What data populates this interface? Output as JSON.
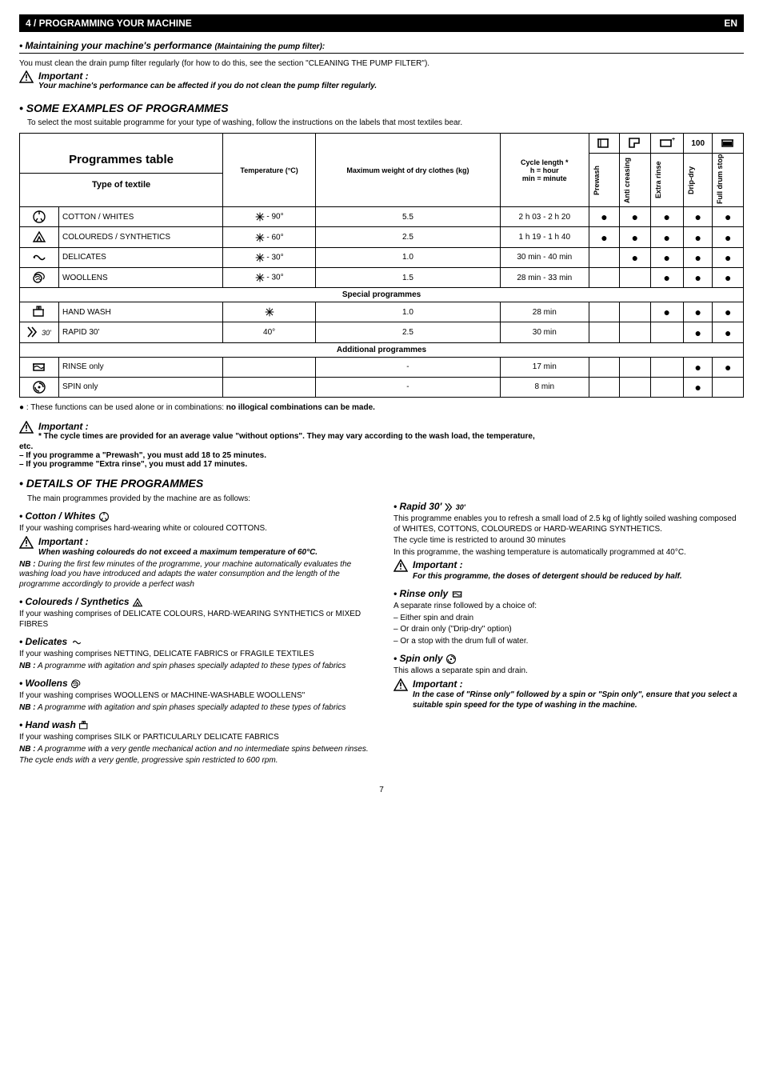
{
  "header": {
    "left": "4 / PROGRAMMING YOUR MACHINE",
    "right": "EN"
  },
  "maint_title": "• Maintaining your machine's performance",
  "maint_sub": "(Maintaining the pump filter):",
  "maint_body": "You must clean the drain pump filter regularly (for how to do this, see the section \"CLEANING THE PUMP FILTER\").",
  "maint_warn_imp": "Important :",
  "maint_warn_body": "Your machine's performance can be affected if you do not clean the pump filter regularly.",
  "examples_title": "• SOME EXAMPLES OF PROGRAMMES",
  "examples_body": "To select the most suitable programme for your type of washing, follow the instructions on the labels that most textiles bear.",
  "table": {
    "title": "Programmes table",
    "type_label": "Type of textile",
    "col_temp": "Temperature (°C)",
    "col_maxw": "Maximum weight of dry clothes (kg)",
    "col_cycle_l1": "Cycle length *",
    "col_cycle_l2": "h = hour",
    "col_cycle_l3": "min = minute",
    "vh": [
      "Prewash",
      "Anti creasing",
      "Extra rinse",
      "Drip-dry",
      "Full drum stop"
    ],
    "top_icons_num": "100",
    "rows": [
      {
        "name": "COTTON / WHITES",
        "temp": "- 90°",
        "kg": "5.5",
        "cycle": "2 h 03 - 2 h 20",
        "d": [
          1,
          1,
          1,
          1,
          1
        ],
        "icon": "cotton",
        "snow": true
      },
      {
        "name": "COLOUREDS / SYNTHETICS",
        "temp": "- 60°",
        "kg": "2.5",
        "cycle": "1 h 19 - 1 h 40",
        "d": [
          1,
          1,
          1,
          1,
          1
        ],
        "icon": "syn",
        "snow": true
      },
      {
        "name": "DELICATES",
        "temp": "- 30°",
        "kg": "1.0",
        "cycle": "30 min - 40 min",
        "d": [
          0,
          1,
          1,
          1,
          1
        ],
        "icon": "del",
        "snow": true
      },
      {
        "name": "WOOLLENS",
        "temp": "- 30°",
        "kg": "1.5",
        "cycle": "28 min - 33 min",
        "d": [
          0,
          0,
          1,
          1,
          1
        ],
        "icon": "wool",
        "snow": true
      }
    ],
    "special_label": "Special programmes",
    "special": [
      {
        "name": "HAND WASH",
        "temp": "",
        "kg": "1.0",
        "cycle": "28 min",
        "d": [
          0,
          0,
          1,
          1,
          1
        ],
        "icon": "hand",
        "snow": true
      },
      {
        "name": "RAPID 30'",
        "temp": "40°",
        "kg": "2.5",
        "cycle": "30 min",
        "d": [
          0,
          0,
          0,
          1,
          1
        ],
        "icon": "rapid",
        "snow": false
      }
    ],
    "additional_label": "Additional programmes",
    "additional": [
      {
        "name": "RINSE only",
        "temp": "",
        "kg": "-",
        "cycle": "17 min",
        "d": [
          0,
          0,
          0,
          1,
          1
        ],
        "icon": "rinse",
        "snow": false
      },
      {
        "name": "SPIN only",
        "temp": "",
        "kg": "-",
        "cycle": "8 min",
        "d": [
          0,
          0,
          0,
          1,
          0
        ],
        "icon": "spin",
        "snow": false
      }
    ]
  },
  "func_note": "● : These functions can be used alone or in combinations: ",
  "func_note_bold": "no illogical combinations can be made.",
  "imp2_title": "Important :",
  "imp2_l1": "* The cycle times are provided for an average value \"without options\". They may vary according to the wash load, the temperature,",
  "imp2_etc": "etc.",
  "imp2_l2": "– If you programme a \"Prewash\", you must add 18 to 25 minutes.",
  "imp2_l3": "– If you programme \"Extra rinse\", you must add 17 minutes.",
  "details_title": "• DETAILS OF THE PROGRAMMES",
  "details_intro": "The main programmes provided by the machine are as follows:",
  "left": {
    "cotton_t": "• Cotton / Whites",
    "cotton_b": "If your washing comprises hard-wearing white or coloured COTTONS.",
    "cotton_imp": "Important :",
    "cotton_imp_b": "When washing coloureds do not exceed a maximum temperature of 60°C.",
    "cotton_nb": "NB : During the first few minutes of the programme, your machine automatically evaluates the washing load you have introduced and adapts the water consumption and the length of the programme accordingly to provide a perfect wash",
    "col_t": "• Coloureds / Synthetics",
    "col_b": "If your washing comprises of DELICATE COLOURS, HARD-WEARING SYNTHETICS or MIXED FIBRES",
    "del_t": "• Delicates",
    "del_b": "If your washing comprises NETTING, DELICATE FABRICS or FRAGILE TEXTILES",
    "del_nb": "NB : A programme with agitation and spin phases specially adapted to these types of fabrics",
    "wool_t": "• Woollens",
    "wool_b": "If your washing comprises WOOLLENS or MACHINE-WASHABLE WOOLLENS\"",
    "wool_nb": "NB : A programme with agitation and spin phases specially adapted to these types of fabrics",
    "hand_t": "• Hand wash",
    "hand_b": "If your washing comprises SILK or PARTICULARLY DELICATE FABRICS",
    "hand_nb": "NB : A programme with a very gentle mechanical action and no intermediate spins between rinses.",
    "hand_nb2": "The cycle ends with a very gentle, progressive spin restricted to 600 rpm."
  },
  "right": {
    "rapid_t": "• Rapid 30'",
    "rapid_b1": "This programme enables you to refresh a small load of 2.5 kg of lightly soiled washing composed of WHITES, COTTONS, COLOUREDS or HARD-WEARING SYNTHETICS.",
    "rapid_b2": "The cycle time is restricted to around 30 minutes",
    "rapid_b3": "In this programme, the washing temperature is automatically programmed at 40°C.",
    "rapid_imp": "Important :",
    "rapid_imp_b": "For this programme, the doses of detergent should be reduced by half.",
    "rinse_t": "• Rinse only",
    "rinse_b1": "A separate rinse followed by a choice of:",
    "rinse_b2": "– Either spin and drain",
    "rinse_b3": "– Or drain only (\"Drip-dry\" option)",
    "rinse_b4": "– Or a stop with the drum full of water.",
    "spin_t": "• Spin only",
    "spin_b": "This allows a separate spin and drain.",
    "spin_imp": "Important :",
    "spin_imp_b": "In the case of \"Rinse only\" followed by a spin or \"Spin only\", ensure that you select a suitable spin speed for the type of washing in the machine."
  },
  "pagenum": "7"
}
